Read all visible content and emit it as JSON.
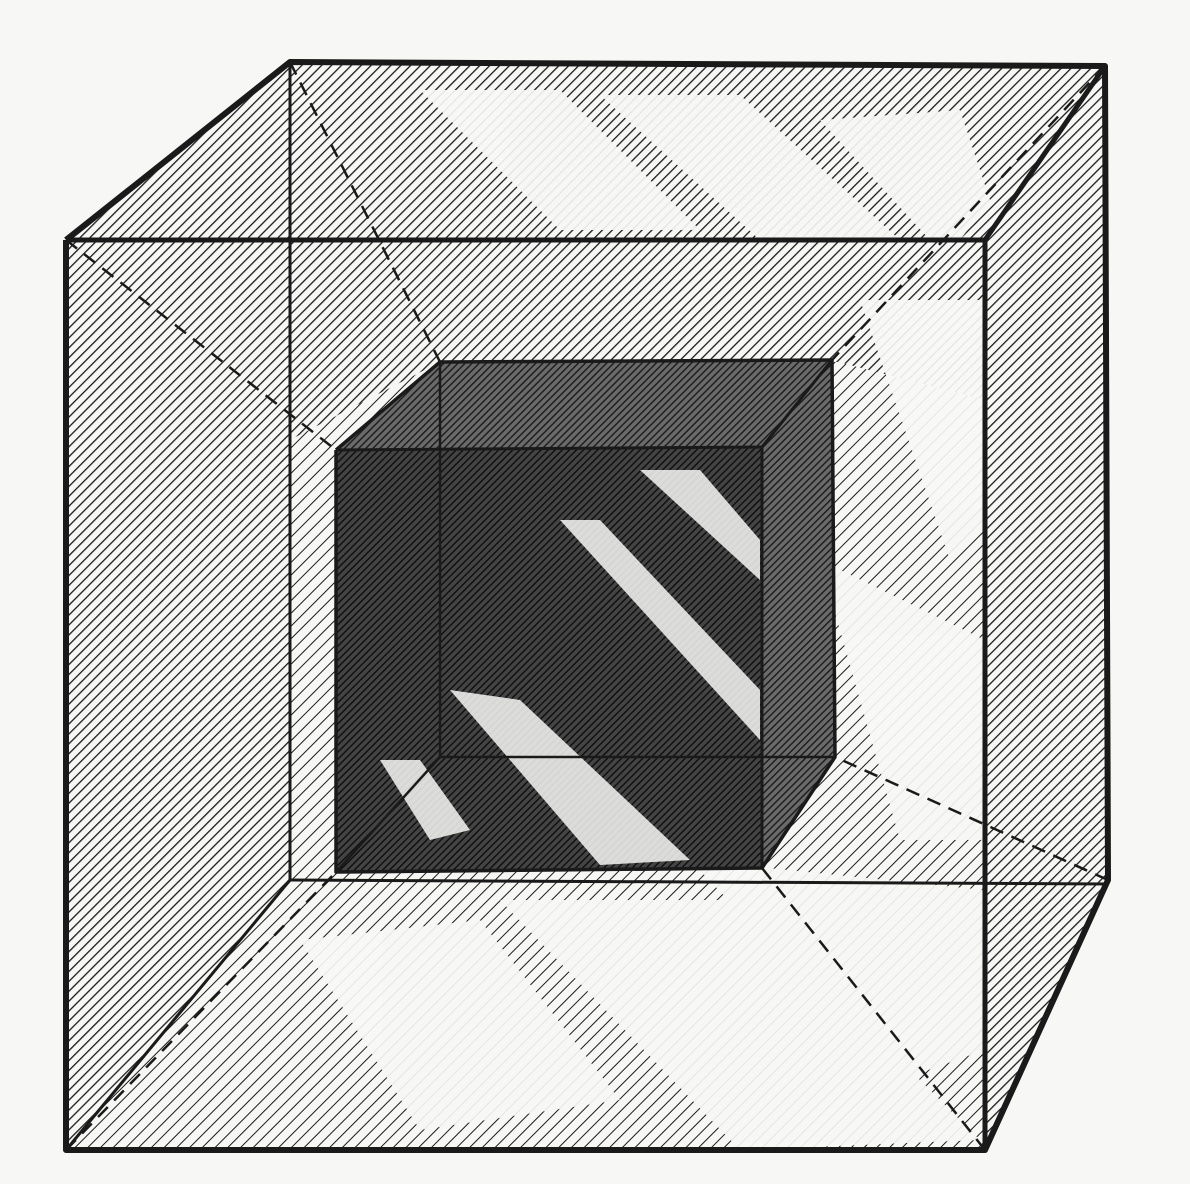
{
  "figure": {
    "description": "",
    "colors": {
      "paper": "#f7f7f5",
      "ink": "#1a1a1a",
      "dense_ink": "#2a2a2a"
    }
  }
}
